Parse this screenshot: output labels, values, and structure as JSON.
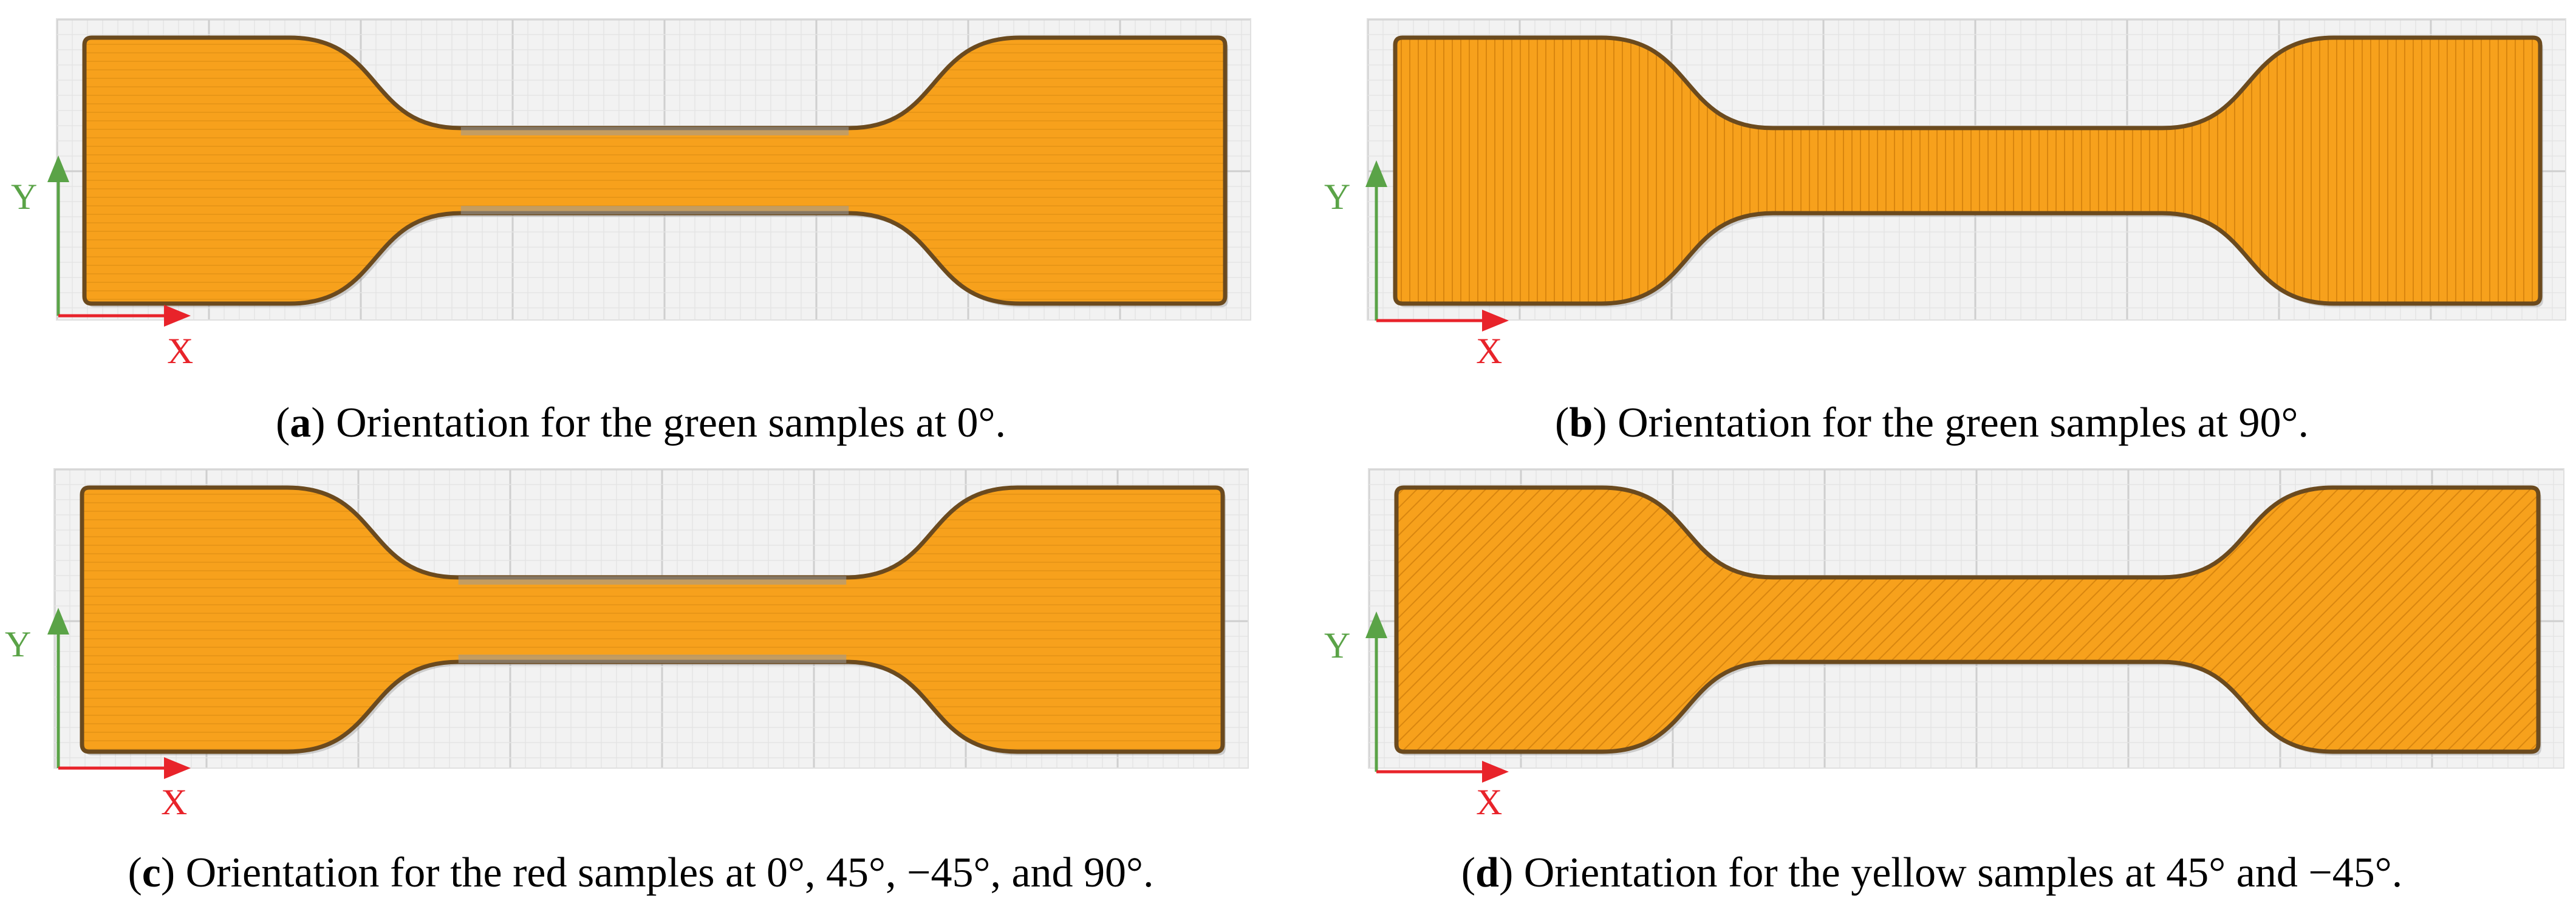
{
  "colors": {
    "fill": "#f7a11c",
    "outline": "#6b4a1e",
    "grid_minor": "#e4e4e4",
    "grid_major": "#cfcfcf",
    "canvas_bg": "#f2f2f2",
    "y_axis": "#5aa347",
    "x_axis": "#e8232a"
  },
  "axis_labels": {
    "x": "X",
    "y": "Y"
  },
  "panels": [
    {
      "letter": "a",
      "caption": "Orientation for the green samples at 0°.",
      "raster": "0",
      "gauge_gap": true
    },
    {
      "letter": "b",
      "caption": "Orientation for the green samples at 90°.",
      "raster": "90",
      "gauge_gap": false
    },
    {
      "letter": "c",
      "caption": "Orientation for the red samples at 0°, 45°, −45°, and 90°.",
      "raster": "0",
      "gauge_gap": true
    },
    {
      "letter": "d",
      "caption": "Orientation for the yellow samples at 45° and −45°.",
      "raster": "45",
      "gauge_gap": false
    }
  ]
}
